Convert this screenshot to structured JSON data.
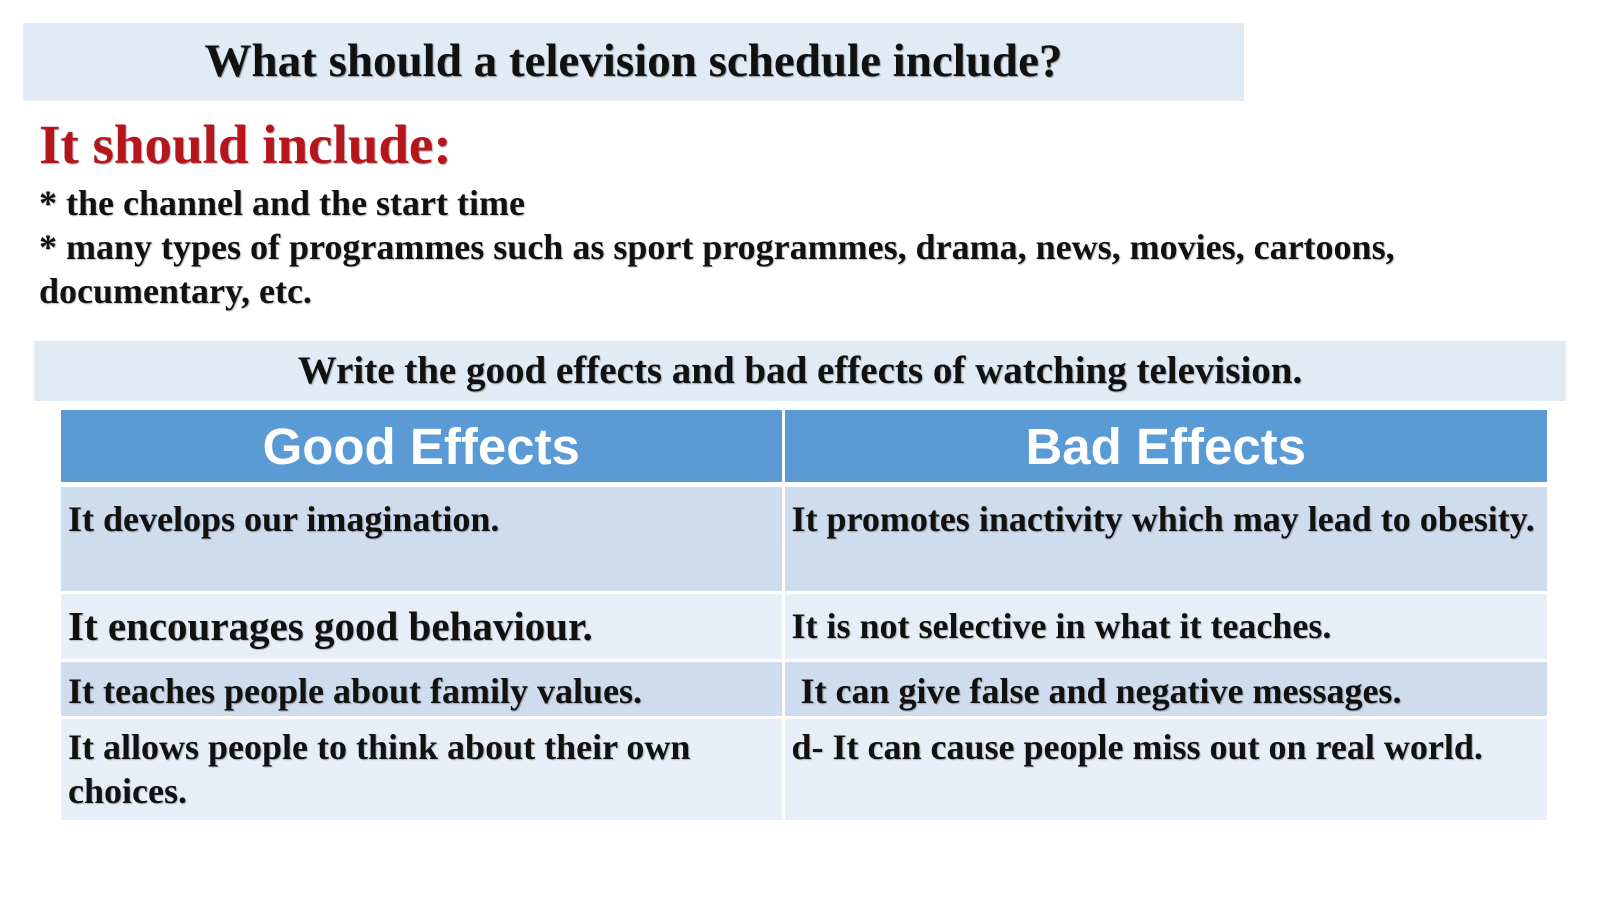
{
  "question": "What should a television schedule include?",
  "include_heading": "It should include:",
  "bullets": [
    "* the channel and the start time",
    "* many types of programmes such as sport programmes, drama, news, movies, cartoons, documentary, etc."
  ],
  "instruction": "Write the good effects and bad effects of watching television.",
  "table": {
    "headers": [
      "Good Effects",
      "Bad Effects"
    ],
    "rows": [
      [
        "It develops our imagination.",
        "It promotes inactivity which may lead to obesity."
      ],
      [
        "It encourages good behaviour.",
        "It is not selective in what it teaches."
      ],
      [
        "It teaches people about family values.",
        " It can give false and negative messages."
      ],
      [
        "It allows people to think about their own choices.",
        "d- It can cause people miss out on real world."
      ]
    ]
  },
  "colors": {
    "heading_red": "#b4161b",
    "header_blue": "#5b9bd5",
    "box_light_blue": "#e1ebf6",
    "row_dark": "#cfdced",
    "row_light": "#e8eef7"
  }
}
